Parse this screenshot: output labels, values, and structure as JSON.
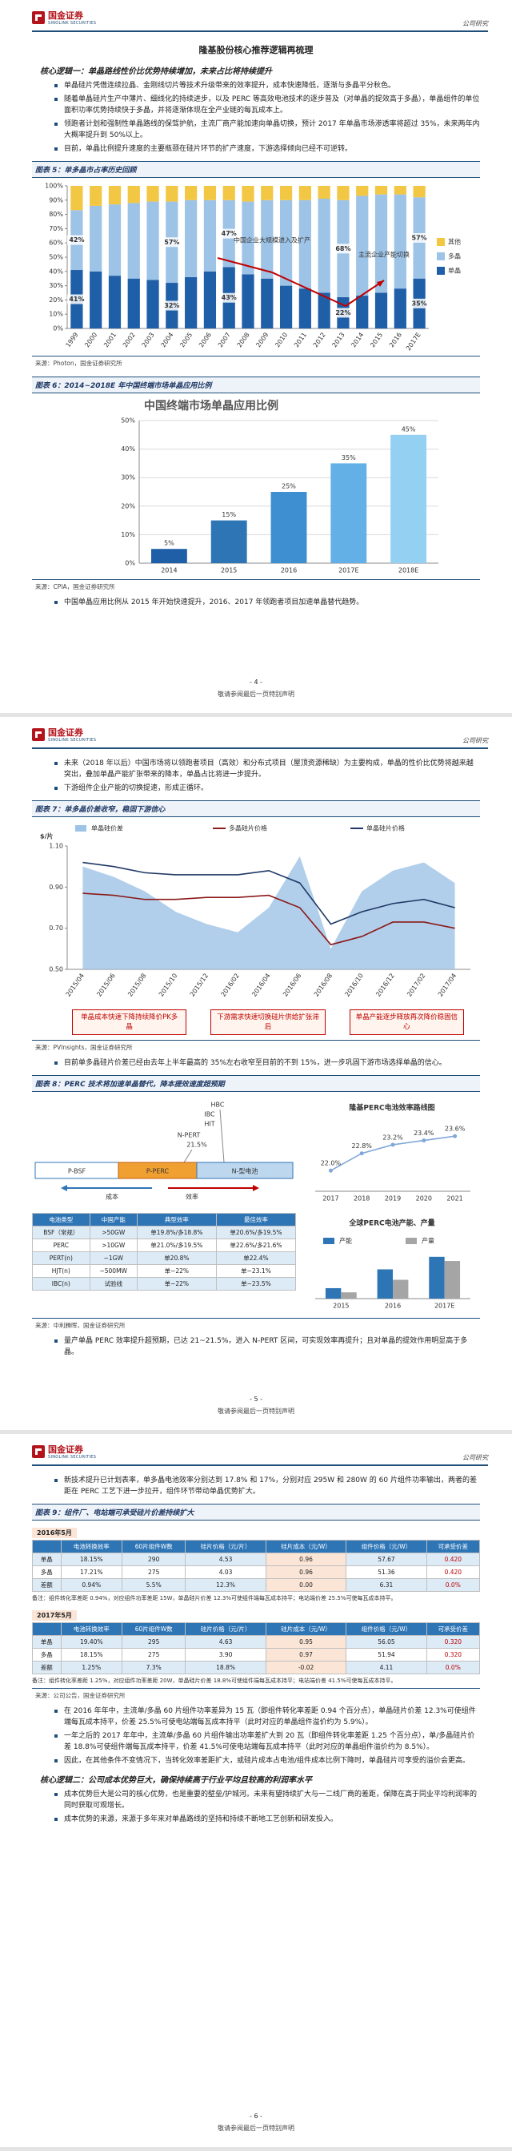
{
  "pages": [
    {
      "header": {
        "logo": "国金证券",
        "logo_en": "SINOLINK SECURITIES",
        "tag": "公司研究"
      },
      "blocks": [
        {
          "title": "隆基股份核心推荐逻辑再梳理"
        },
        {
          "heading": "核心逻辑一：单晶路线性价比优势持续增加，未来占比将持续提升"
        },
        {
          "bullet": "单晶硅片凭借连续拉晶、金刚线切片等技术升级带来的效率提升，成本快速降低，逐渐与多晶平分秋色。"
        },
        {
          "bullet": "随着单晶硅片生产中薄片、细线化的持续进步，以及 PERC 等高效电池技术的逐步普及（对单晶的提效高于多晶），单晶组件的单位面积功率优势持续快于多晶，并将逐渐体现在全产业链的每瓦成本上。"
        },
        {
          "bullet": "领跑者计划和强制性单晶路线的保驾护航，主流厂商产能加速向单晶切换，预计 2017 年单晶市场渗透率将超过 35%，未来两年内大概率提升到 50%以上。"
        },
        {
          "bullet": "目前，单晶比例提升速度的主要瓶颈在硅片环节的扩产速度，下游选择倾向已经不可逆转。"
        },
        {
          "caption": "图表 5：单多晶市占率历史回顾"
        },
        {
          "chart": {
            "type": "bar",
            "stacked": true,
            "legend": "right",
            "grid": false,
            "categories": [
              "1999",
              "2000",
              "2001",
              "2002",
              "2003",
              "2004",
              "2005",
              "2006",
              "2007",
              "2008",
              "2009",
              "2010",
              "2011",
              "2012",
              "2013",
              "2014",
              "2015",
              "2016",
              "2017E"
            ],
            "series": [
              {
                "name": "单晶",
                "color": "#1f5fa8",
                "values": [
                  41,
                  40,
                  37,
                  35,
                  34,
                  32,
                  36,
                  40,
                  43,
                  38,
                  35,
                  30,
                  28,
                  25,
                  22,
                  23,
                  25,
                  28,
                  35
                ],
                "value_labels": [
                  "41%",
                  null,
                  null,
                  null,
                  null,
                  "32%",
                  null,
                  null,
                  "43%",
                  null,
                  null,
                  null,
                  null,
                  null,
                  "22%",
                  null,
                  null,
                  null,
                  "35%"
                ]
              },
              {
                "name": "多晶",
                "color": "#9dc3e6",
                "values": [
                  42,
                  46,
                  50,
                  53,
                  55,
                  57,
                  54,
                  50,
                  47,
                  51,
                  55,
                  60,
                  62,
                  66,
                  68,
                  70,
                  69,
                  66,
                  57
                ],
                "value_labels": [
                  "42%",
                  null,
                  null,
                  null,
                  null,
                  "57%",
                  null,
                  null,
                  "47%",
                  null,
                  null,
                  null,
                  null,
                  null,
                  "68%",
                  null,
                  null,
                  null,
                  "57%"
                ]
              },
              {
                "name": "其他",
                "color": "#f2c744",
                "values": [
                  17,
                  14,
                  13,
                  12,
                  11,
                  11,
                  10,
                  10,
                  10,
                  11,
                  10,
                  10,
                  10,
                  9,
                  10,
                  7,
                  6,
                  6,
                  8
                ]
              }
            ],
            "ylim": [
              0,
              100
            ],
            "yticks": [
              {
                "value": 0,
                "label": "0%"
              },
              {
                "value": 10,
                "label": "10%"
              },
              {
                "value": 20,
                "label": "20%"
              },
              {
                "value": 30,
                "label": "30%"
              },
              {
                "value": 40,
                "label": "40%"
              },
              {
                "value": 50,
                "label": "50%"
              },
              {
                "value": 60,
                "label": "60%"
              },
              {
                "value": 70,
                "label": "70%"
              },
              {
                "value": 80,
                "label": "80%"
              },
              {
                "value": 90,
                "label": "90%"
              },
              {
                "value": 100,
                "label": "100%"
              }
            ],
            "annotations": [
              "中国企业大规模进入及扩产",
              "主流企业产能切换"
            ]
          }
        },
        {
          "source": "来源：Photon，国金证券研究所"
        },
        {
          "caption": "图表 6：2014~2018E 年中国终端市场单晶应用比例"
        },
        {
          "chart": {
            "type": "bar",
            "title": "中国终端市场单晶应用比例",
            "grid": true,
            "categories": [
              "2014",
              "2015",
              "2016",
              "2017E",
              "2018E"
            ],
            "values": [
              5,
              15,
              25,
              35,
              45
            ],
            "value_labels": [
              "5%",
              "15%",
              "25%",
              "35%",
              "45%"
            ],
            "colors": [
              "#1f5fa8",
              "#2e75b6",
              "#3d8fd1",
              "#62b0e6",
              "#93d0f2"
            ],
            "ylim": [
              0,
              50
            ],
            "yticks": [
              {
                "value": 0,
                "label": "0%"
              },
              {
                "value": 10,
                "label": "10%"
              },
              {
                "value": 20,
                "label": "20%"
              },
              {
                "value": 30,
                "label": "30%"
              },
              {
                "value": 40,
                "label": "40%"
              },
              {
                "value": 50,
                "label": "50%"
              }
            ]
          }
        },
        {
          "source": "来源：CPIA，国金证券研究所"
        },
        {
          "bullet": "中国单晶应用比例从 2015 年开始快速提升，2016、2017 年领跑者项目加速单晶替代趋势。"
        }
      ],
      "page_number": "- 4 -",
      "footer": "敬请参阅最后一页特别声明"
    },
    {
      "header": {
        "logo": "国金证券",
        "logo_en": "SINOLINK SECURITIES",
        "tag": "公司研究"
      },
      "blocks": [
        {
          "bullet": "未来（2018 年以后）中国市场将以领跑者项目（高效）和分布式项目（屋顶资源稀缺）为主要构成，单晶的性价比优势将越来越突出，叠加单晶产能扩张带来的降本，单晶占比将进一步提升。"
        },
        {
          "bullet": "下游组件企业产能的切换提速，形成正循环。"
        },
        {
          "caption": "图表 7：单多晶价差收窄，稳固下游信心"
        },
        {
          "chart": {
            "type": "line",
            "ylabel": "$/片",
            "legend": "top",
            "grid": false,
            "categories": [
              "2015/04",
              "2015/06",
              "2015/08",
              "2015/10",
              "2015/12",
              "2016/02",
              "2016/04",
              "2016/06",
              "2016/08",
              "2016/10",
              "2016/12",
              "2017/02",
              "2017/04"
            ],
            "series": [
              {
                "name": "单晶硅价差",
                "color": "#9dc3e6",
                "style": "area",
                "values": [
                  1.0,
                  0.95,
                  0.88,
                  0.78,
                  0.72,
                  0.68,
                  0.8,
                  1.05,
                  0.6,
                  0.88,
                  0.98,
                  1.02,
                  0.92
                ]
              },
              {
                "name": "多晶硅片价格",
                "color": "#8b1a1a",
                "values": [
                  0.87,
                  0.86,
                  0.84,
                  0.84,
                  0.85,
                  0.85,
                  0.86,
                  0.8,
                  0.62,
                  0.66,
                  0.73,
                  0.73,
                  0.7
                ]
              },
              {
                "name": "单晶硅片价格",
                "color": "#1f3864",
                "values": [
                  1.02,
                  1.0,
                  0.97,
                  0.96,
                  0.96,
                  0.96,
                  0.98,
                  0.92,
                  0.72,
                  0.78,
                  0.82,
                  0.84,
                  0.8
                ]
              }
            ],
            "ylim": [
              0.5,
              1.1
            ],
            "yticks": [
              {
                "value": 0.5,
                "label": "0.50"
              },
              {
                "value": 0.7,
                "label": "0.70"
              },
              {
                "value": 0.9,
                "label": "0.90"
              },
              {
                "value": 1.1,
                "label": "1.10"
              }
            ],
            "annotations": [
              "单晶成本快速下降持续降价PK多晶",
              "下游需求快速切换硅片供给扩张滞后",
              "单晶产能逐步释放再次降价稳固信心"
            ]
          }
        },
        {
          "source": "来源：PVInsights，国金证券研究所"
        },
        {
          "bullet": "目前单多晶硅片价差已经由去年上半年最高的 35%左右收窄至目前的不到 15%，进一步巩固下游市场选择单晶的信心。"
        },
        {
          "caption": "图表 8：PERC 技术将加速单晶替代，降本提效速度超预期"
        },
        {
          "row": [
            {
              "diagram": {
                "labels": [
                  "HBC",
                  "IBC",
                  "HIT",
                  "N-PERT",
                  "21.5%"
                ],
                "stages": [
                  "P-BSF",
                  "P-PERC",
                  "N-型电池"
                ],
                "cost": "成本",
                "efficiency": "效率"
              }
            },
            {
              "chart": {
                "type": "line",
                "title": "隆基PERC电池效率路线图",
                "categories": [
                  "2017",
                  "2018",
                  "2019",
                  "2020",
                  "2021"
                ],
                "series": [
                  {
                    "name": "效率",
                    "color": "#7fa7d8",
                    "values": [
                      22.0,
                      22.8,
                      23.2,
                      23.4,
                      23.6
                    ],
                    "value_labels": [
                      "22.0%",
                      "22.8%",
                      "23.2%",
                      "23.4%",
                      "23.6%"
                    ]
                  }
                ]
              }
            }
          ]
        },
        {
          "row": [
            {
              "table": {
                "header": [
                  "电池类型",
                  "中国产能",
                  "典型效率",
                  "最佳效率"
                ],
                "rows": [
                  [
                    "BSF（常规）",
                    ">50GW",
                    "单19.8%/多18.8%",
                    "单20.6%/多19.5%"
                  ],
                  [
                    "PERC",
                    ">10GW",
                    "单21.0%/多19.5%",
                    "单22.6%/多21.6%"
                  ],
                  [
                    "PERT(n)",
                    "~1GW",
                    "单20.8%",
                    "单22.4%"
                  ],
                  [
                    "HJT(n)",
                    "~500MW",
                    "单~22%",
                    "单~23.1%"
                  ],
                  [
                    "IBC(n)",
                    "试验线",
                    "单~22%",
                    "单~23.5%"
                  ]
                ]
              }
            },
            {
              "chart": {
                "type": "bar",
                "title": "全球PERC电池产能、产量",
                "legend": "top",
                "categories": [
                  "2015",
                  "2016",
                  "2017E"
                ],
                "series": [
                  {
                    "name": "产能",
                    "color": "#2e75b6",
                    "values": [
                      5,
                      14,
                      20
                    ]
                  },
                  {
                    "name": "产量",
                    "color": "#a5a5a5",
                    "values": [
                      3,
                      9,
                      18
                    ]
                  }
                ]
              }
            }
          ]
        },
        {
          "source": "来源：中利腾晖，国金证券研究所"
        },
        {
          "bullet": "量产单晶 PERC 效率提升超预期，已达 21~21.5%，进入 N-PERT 区间，可实现效率再提升；且对单晶的提效作用明显高于多晶。"
        }
      ],
      "page_number": "- 5 -",
      "footer": "敬请参阅最后一页特别声明"
    },
    {
      "header": {
        "logo": "国金证券",
        "logo_en": "SINOLINK SECURITIES",
        "tag": "公司研究"
      },
      "blocks": [
        {
          "bullet": "新技术提升已计划表率，单多晶电池效率分别达到 17.8% 和 17%，分别对应 295W 和 280W 的 60 片组件功率输出，两者的差距在 PERC 工艺下进一步拉开，组件环节带动单晶优势扩大。"
        },
        {
          "caption": "图表 9：组件厂、电站端可承受硅片价差持续扩大"
        },
        {
          "table": {
            "label": "2016年5月",
            "header": [
              "电池转换效率",
              "60片组件W数",
              "硅片价格（元/片）",
              "硅片成本（元/W）",
              "组件价格（元/W）",
              "可承受价差"
            ],
            "rows": [
              [
                "单晶",
                "18.15%",
                "290",
                "4.53",
                "0.96",
                "57.67",
                "0.420"
              ],
              [
                "多晶",
                "17.21%",
                "275",
                "4.03",
                "0.96",
                "51.36",
                "0.420"
              ],
              [
                "差额",
                "0.94%",
                "5.5%",
                "12.3%",
                "0.00",
                "6.31",
                "0.0%"
              ]
            ]
          }
        },
        {
          "note": "备注：组件转化率差距 0.94%，对应组件功率差距 15W，单晶硅片价差 12.3%可使组件端每瓦成本持平；电站端价差 25.5%可使每瓦成本持平。"
        },
        {
          "table": {
            "label": "2017年5月",
            "header": [
              "电池转换效率",
              "60片组件W数",
              "硅片价格（元/片）",
              "硅片成本（元/W）",
              "组件价格（元/W）",
              "可承受价差"
            ],
            "rows": [
              [
                "单晶",
                "19.40%",
                "295",
                "4.63",
                "0.95",
                "56.05",
                "0.320"
              ],
              [
                "多晶",
                "18.15%",
                "275",
                "3.90",
                "0.97",
                "51.94",
                "0.320"
              ],
              [
                "差额",
                "1.25%",
                "7.3%",
                "18.8%",
                "-0.02",
                "4.11",
                "0.0%"
              ]
            ]
          }
        },
        {
          "note": "备注：组件转化率差距 1.25%，对应组件功率差距 20W，单晶硅片价差 18.8%可使组件端每瓦成本持平；电站端价差 41.5%可使每瓦成本持平。"
        },
        {
          "source": "来源：公司公告，国金证券研究所"
        },
        {
          "bullet": "在 2016 年年中，主流单/多晶 60 片组件功率差异为 15 瓦（即组件转化率差距 0.94 个百分点），单晶硅片价差 12.3%可使组件端每瓦成本持平，价差 25.5%可使电站端每瓦成本持平（此时对应的单晶组件溢价约为 5.9%）。"
        },
        {
          "bullet": "一年之后的 2017 年年中，主流单/多晶 60 片组件输出功率差扩大到 20 瓦（即组件转化率差距 1.25 个百分点），单/多晶硅片价差 18.8%可使组件端每瓦成本持平，价差 41.5%可使电站端每瓦成本持平（此时对应的单晶组件溢价约为 8.5%）。"
        },
        {
          "bullet": "因此，在其他条件不变情况下，当转化效率差距扩大，或硅片成本占电池/组件成本比例下降时，单晶硅片可享受的溢价会更高。"
        },
        {
          "heading": "核心逻辑二：公司成本优势巨大，确保持续高于行业平均且较高的利润率水平"
        },
        {
          "bullet": "成本优势巨大是公司的核心优势，也是重要的壁垒/护城河。未来有望持续扩大与一二线厂商的差距，保障在高于同业平均利润率的同时获取可观增长。"
        },
        {
          "bullet": "成本优势的来源，来源于多年来对单晶路线的坚持和持续不断地工艺创新和研发投入。"
        }
      ],
      "page_number": "- 6 -",
      "footer": "敬请参阅最后一页特别声明"
    }
  ]
}
